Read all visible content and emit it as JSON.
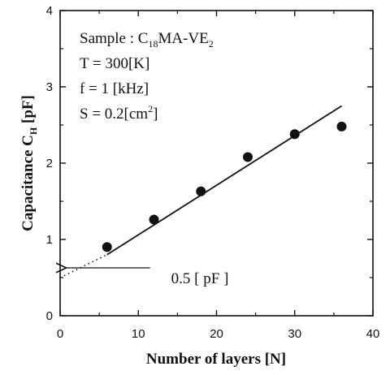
{
  "chart_data": {
    "type": "scatter",
    "xlabel": "Number of layers [N]",
    "ylabel": "Capacitance C",
    "ylabel_subscript": "H",
    "ylabel_unit": " [pF]",
    "xlim": [
      0,
      40
    ],
    "ylim": [
      0,
      4
    ],
    "x_ticks": [
      "0",
      "10",
      "20",
      "30",
      "40"
    ],
    "y_ticks": [
      "0",
      "1",
      "2",
      "3",
      "4"
    ],
    "points": [
      {
        "x": 6,
        "y": 0.9
      },
      {
        "x": 12,
        "y": 1.26
      },
      {
        "x": 18,
        "y": 1.63
      },
      {
        "x": 24,
        "y": 2.08
      },
      {
        "x": 30,
        "y": 2.38
      },
      {
        "x": 36,
        "y": 2.48
      }
    ],
    "fit_line": {
      "x_start": 6,
      "x_end": 36,
      "y_start": 0.8,
      "y_end": 2.75
    },
    "extrapolation": {
      "x_start": 0,
      "x_end": 6,
      "y_start": 0.5,
      "y_end": 0.8
    },
    "annotation": {
      "text": "0.5 [ pF ]",
      "value": 0.5
    },
    "conditions": {
      "sample_prefix": "Sample : C",
      "sample_sub1": "18",
      "sample_mid": "MA-VE",
      "sample_sub2": "2",
      "temperature": "T = 300[K]",
      "frequency": "f = 1 [kHz]",
      "area_prefix": "S = 0.2[cm",
      "area_sup": "2",
      "area_suffix": "]"
    },
    "grid": false,
    "legend": "none"
  }
}
